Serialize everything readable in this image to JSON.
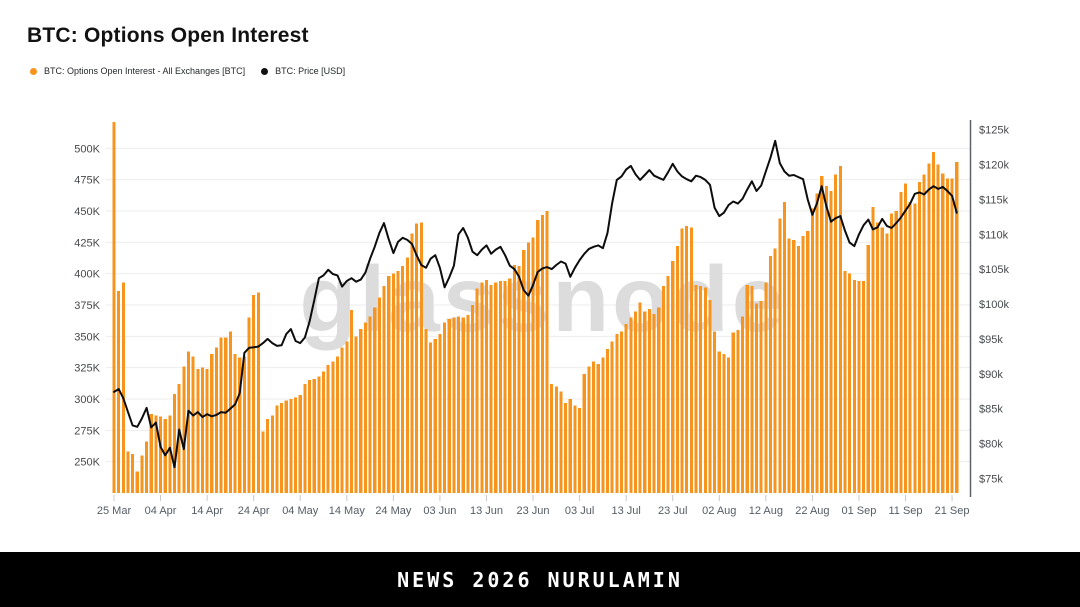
{
  "page": {
    "title": "BTC: Options Open Interest",
    "watermark": "glassnode",
    "banner_text": "NEWS 2026 NURULAMIN"
  },
  "legend": [
    {
      "label": "BTC: Options Open Interest - All Exchanges [BTC]",
      "color": "#F7941E"
    },
    {
      "label": "BTC: Price [USD]",
      "color": "#111111"
    }
  ],
  "chart_data": {
    "type": "bar",
    "title": "BTC: Options Open Interest",
    "grid": true,
    "legend_position": "top-left",
    "x_tick_labels": [
      "25 Mar",
      "04 Apr",
      "14 Apr",
      "24 Apr",
      "04 May",
      "14 May",
      "24 May",
      "03 Jun",
      "13 Jun",
      "23 Jun",
      "03 Jul",
      "13 Jul",
      "23 Jul",
      "02 Aug",
      "12 Aug",
      "22 Aug",
      "01 Sep",
      "11 Sep",
      "21 Sep"
    ],
    "x_tick_every": 10,
    "left_axis": {
      "tick_labels": [
        "500K",
        "475K",
        "450K",
        "425K",
        "400K",
        "375K",
        "350K",
        "325K",
        "300K",
        "275K",
        "250K"
      ],
      "tick_values": [
        500,
        475,
        450,
        425,
        400,
        375,
        350,
        325,
        300,
        275,
        250
      ],
      "ylim": [
        225,
        521
      ]
    },
    "right_axis": {
      "tick_labels": [
        "$125k",
        "$120k",
        "$115k",
        "$110k",
        "$105k",
        "$100k",
        "$95k",
        "$90k",
        "$85k",
        "$80k",
        "$75k"
      ],
      "tick_values": [
        125,
        120,
        115,
        110,
        105,
        100,
        95,
        90,
        85,
        80,
        75
      ],
      "ylim": [
        72.9,
        126.1
      ]
    },
    "series": [
      {
        "name": "BTC: Options Open Interest - All Exchanges [BTC]",
        "type": "bar",
        "axis": "left",
        "unit": "thousand BTC",
        "color": "#F7941E",
        "values": [
          530,
          386,
          393,
          258,
          256,
          242,
          255,
          266,
          288,
          287,
          286,
          284,
          287,
          304,
          312,
          326,
          338,
          334,
          324,
          325,
          324,
          336,
          341,
          349,
          349,
          354,
          336,
          333,
          334,
          365,
          383,
          385,
          274,
          284,
          287,
          295,
          297,
          299,
          300,
          301,
          303,
          312,
          315,
          316,
          318,
          322,
          327,
          330,
          334,
          341,
          346,
          371,
          350,
          356,
          361,
          366,
          373,
          381,
          390,
          398,
          400,
          402,
          406,
          413,
          432,
          440,
          441,
          356,
          345,
          348,
          352,
          361,
          364,
          365,
          366,
          365,
          367,
          375,
          388,
          393,
          395,
          391,
          393,
          394,
          394,
          396,
          407,
          406,
          419,
          425,
          429,
          443,
          447,
          450,
          312,
          310,
          306,
          297,
          300,
          295,
          293,
          320,
          326,
          330,
          328,
          333,
          340,
          346,
          352,
          354,
          360,
          365,
          370,
          377,
          370,
          372,
          368,
          373,
          390,
          398,
          410,
          422,
          436,
          438,
          437,
          391,
          390,
          389,
          379,
          354,
          338,
          336,
          333,
          353,
          355,
          366,
          391,
          390,
          376,
          378,
          393,
          414,
          420,
          444,
          457,
          428,
          427,
          422,
          430,
          434,
          452,
          464,
          478,
          470,
          466,
          479,
          486,
          402,
          400,
          395,
          394,
          394,
          423,
          453,
          441,
          437,
          432,
          448,
          450,
          465,
          472,
          457,
          456,
          473,
          479,
          488,
          497,
          487,
          480,
          476,
          476,
          489
        ]
      },
      {
        "name": "BTC: Price [USD]",
        "type": "line",
        "axis": "right",
        "unit": "thousand USD",
        "color": "#0d0d0d",
        "values": [
          87.4,
          87.8,
          86.5,
          84.5,
          82.6,
          82.4,
          83.6,
          85.1,
          82.3,
          83.0,
          79.5,
          78.3,
          79.4,
          76.6,
          82.0,
          79.2,
          84.7,
          84.0,
          84.5,
          83.8,
          84.2,
          83.9,
          84.1,
          84.5,
          84.4,
          85.0,
          85.6,
          87.2,
          93.0,
          93.7,
          93.8,
          93.9,
          94.4,
          95.0,
          94.4,
          94.0,
          94.1,
          95.7,
          96.4,
          94.7,
          94.4,
          95.2,
          97.5,
          100.5,
          103.7,
          104.1,
          104.9,
          104.3,
          104.1,
          102.5,
          103.3,
          103.7,
          103.2,
          103.5,
          104.5,
          106.5,
          108.2,
          110.2,
          111.6,
          109.3,
          107.3,
          108.9,
          109.5,
          109.2,
          108.6,
          107.0,
          105.6,
          105.2,
          106.5,
          107.0,
          105.2,
          102.4,
          103.8,
          105.5,
          110.0,
          110.9,
          109.5,
          107.5,
          107.0,
          107.8,
          108.4,
          107.2,
          107.8,
          108.2,
          107.0,
          105.5,
          105.0,
          103.9,
          102.0,
          101.2,
          102.7,
          104.6,
          105.1,
          105.3,
          105.0,
          105.6,
          106.1,
          105.8,
          103.9,
          105.2,
          106.3,
          107.2,
          107.9,
          108.2,
          108.4,
          108.0,
          110.2,
          114.5,
          117.8,
          118.3,
          119.3,
          119.8,
          118.6,
          117.8,
          118.5,
          119.2,
          118.4,
          118.1,
          117.8,
          118.9,
          120.1,
          119.0,
          118.3,
          117.9,
          117.6,
          118.4,
          118.2,
          117.8,
          117.1,
          113.8,
          112.6,
          113.1,
          114.2,
          114.7,
          114.4,
          115.1,
          116.4,
          117.6,
          116.2,
          117.0,
          119.0,
          121.0,
          123.4,
          120.2,
          119.0,
          118.4,
          118.5,
          118.2,
          117.9,
          115.0,
          112.8,
          114.5,
          116.9,
          114.0,
          111.8,
          112.3,
          112.6,
          110.5,
          108.8,
          108.3,
          110.0,
          111.3,
          112.1,
          110.7,
          111.0,
          112.2,
          111.2,
          110.9,
          111.6,
          112.4,
          113.4,
          114.4,
          115.8,
          116.0,
          115.7,
          116.4,
          116.9,
          116.5,
          116.8,
          116.2,
          115.5,
          113.1
        ]
      }
    ],
    "colors": {
      "bar_orange": "#F7941E",
      "price_line": "#0d0d0d",
      "gridline": "#ededed",
      "right_axis_line": "#5f6368",
      "axis_label": "#47494d",
      "date_label": "#555c64",
      "watermark": "#dcdcdc"
    }
  }
}
